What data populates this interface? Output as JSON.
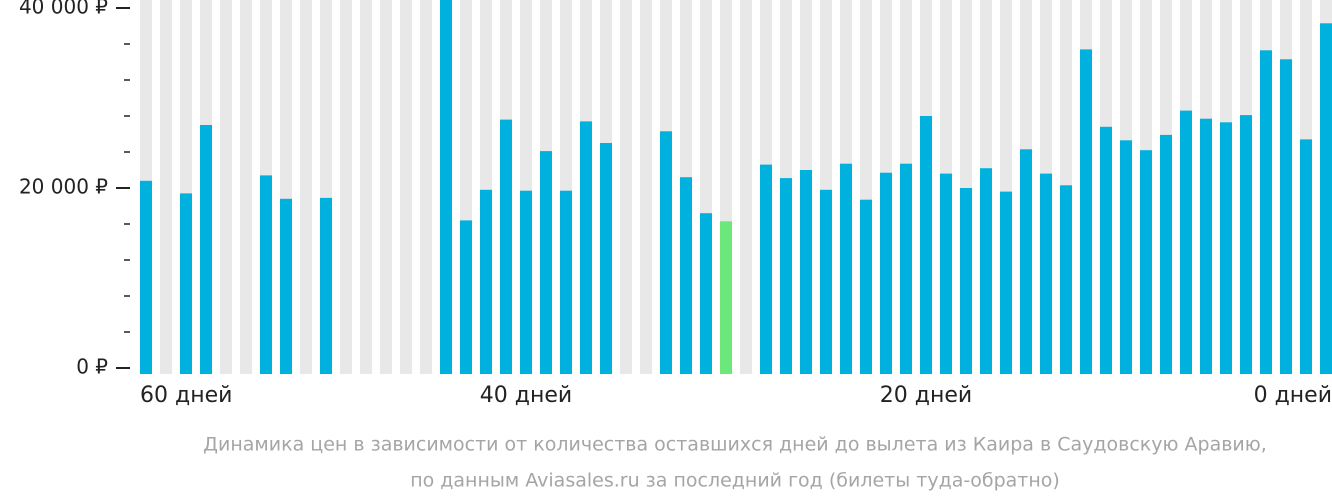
{
  "chart_data": {
    "type": "bar",
    "caption": [
      "Динамика цен в зависимости от количества оставшихся дней до вылета из Каира в Саудовскую Аравию,",
      "по данным Aviasales.ru за последний год (билеты туда-обратно)"
    ],
    "x": [
      59,
      58,
      57,
      56,
      55,
      54,
      53,
      52,
      51,
      50,
      49,
      48,
      47,
      46,
      45,
      44,
      43,
      42,
      41,
      40,
      39,
      38,
      37,
      36,
      35,
      34,
      33,
      32,
      31,
      30,
      29,
      28,
      27,
      26,
      25,
      24,
      23,
      22,
      21,
      20,
      19,
      18,
      17,
      16,
      15,
      14,
      13,
      12,
      11,
      10,
      9,
      8,
      7,
      6,
      5,
      4,
      3,
      2,
      1,
      0
    ],
    "values": [
      20800,
      null,
      19400,
      27000,
      null,
      null,
      21400,
      18800,
      null,
      18900,
      null,
      null,
      null,
      null,
      null,
      40900,
      16400,
      19800,
      27600,
      19700,
      24100,
      19700,
      27400,
      25000,
      null,
      null,
      26300,
      21200,
      17200,
      16300,
      null,
      22600,
      21100,
      22000,
      19800,
      22700,
      18700,
      21700,
      22700,
      28000,
      21600,
      20000,
      22200,
      19600,
      24300,
      21600,
      20300,
      35400,
      26800,
      25300,
      24200,
      25900,
      28600,
      27700,
      27300,
      28100,
      35300,
      34300,
      25400,
      38300
    ],
    "color": "#00b1de",
    "empty_color": "#e8e8e8",
    "highlight": {
      "index": 29,
      "color": "#6ce87a"
    },
    "xlim": [
      60,
      0
    ],
    "xticks": [
      {
        "value": 60,
        "label": "60 дней"
      },
      {
        "value": 40,
        "label": "40 дней"
      },
      {
        "value": 20,
        "label": "20 дней"
      },
      {
        "value": 0,
        "label": "0 дней"
      }
    ],
    "ylim": [
      0,
      40000
    ],
    "yticks": [
      {
        "value": 0,
        "label": "0 ₽"
      },
      {
        "value": 20000,
        "label": "20 000 ₽"
      },
      {
        "value": 40000,
        "label": "40 000 ₽"
      }
    ],
    "yminorticks": [
      4000,
      8000,
      12000,
      16000,
      24000,
      28000,
      32000,
      36000
    ]
  }
}
